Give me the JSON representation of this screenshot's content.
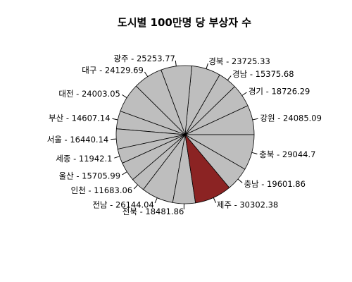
{
  "chart_data": {
    "type": "pie",
    "title": "도시별 100만명 당 부상자 수",
    "start_angle_deg": 0,
    "direction": "counterclockwise",
    "colors": {
      "default": "#bebebe",
      "highlight": "#8b2323",
      "stroke": "#000000"
    },
    "slices": [
      {
        "label": "강원 - 24085.09",
        "name": "강원",
        "value": 24085.09
      },
      {
        "label": "경기 - 18726.29",
        "name": "경기",
        "value": 18726.29
      },
      {
        "label": "경남 - 15375.68",
        "name": "경남",
        "value": 15375.68
      },
      {
        "label": "경북 - 23725.33",
        "name": "경북",
        "value": 23725.33
      },
      {
        "label": "광주 - 25253.77",
        "name": "광주",
        "value": 25253.77
      },
      {
        "label": "대구 - 24129.69",
        "name": "대구",
        "value": 24129.69
      },
      {
        "label": "대전 - 24003.05",
        "name": "대전",
        "value": 24003.05
      },
      {
        "label": "부산 - 14607.14",
        "name": "부산",
        "value": 14607.14
      },
      {
        "label": "서울 - 16440.14",
        "name": "서울",
        "value": 16440.14
      },
      {
        "label": "세종 - 11942.1",
        "name": "세종",
        "value": 11942.1
      },
      {
        "label": "울산 - 15705.99",
        "name": "울산",
        "value": 15705.99
      },
      {
        "label": "인천 - 11683.06",
        "name": "인천",
        "value": 11683.06
      },
      {
        "label": "전남 - 26144.04",
        "name": "전남",
        "value": 26144.04
      },
      {
        "label": "전북 - 18481.86",
        "name": "전북",
        "value": 18481.86
      },
      {
        "label": "제주 - 30302.38",
        "name": "제주",
        "value": 30302.38,
        "highlight": true
      },
      {
        "label": "충남 - 19601.86",
        "name": "충남",
        "value": 19601.86
      },
      {
        "label": "충북 - 29044.7",
        "name": "충북",
        "value": 29044.7
      }
    ]
  }
}
